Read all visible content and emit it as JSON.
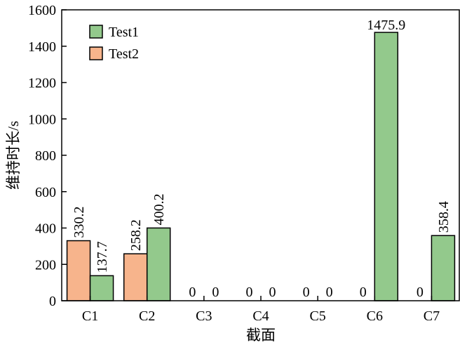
{
  "chart_data": {
    "type": "bar",
    "title": "",
    "xlabel": "截面",
    "ylabel": "维持时长/s",
    "ylim": [
      0,
      1600
    ],
    "yticks": [
      0,
      200,
      400,
      600,
      800,
      1000,
      1200,
      1400,
      1600
    ],
    "categories": [
      "C1",
      "C2",
      "C3",
      "C4",
      "C5",
      "C6",
      "C7"
    ],
    "series": [
      {
        "name": "Test2",
        "color": "#f7b48c",
        "values": [
          330.2,
          258.2,
          0,
          0,
          0,
          0,
          0
        ],
        "labels": [
          "330.2",
          "258.2",
          "0",
          "0",
          "0",
          "0",
          "0"
        ]
      },
      {
        "name": "Test1",
        "color": "#93c98c",
        "values": [
          137.7,
          400.2,
          0,
          0,
          0,
          1475.9,
          358.4
        ],
        "labels": [
          "137.7",
          "400.2",
          "0",
          "0",
          "0",
          "1475.9",
          "358.4"
        ]
      }
    ],
    "legend_order": [
      "Test1",
      "Test2"
    ],
    "legend": "top-left",
    "grid": false
  }
}
